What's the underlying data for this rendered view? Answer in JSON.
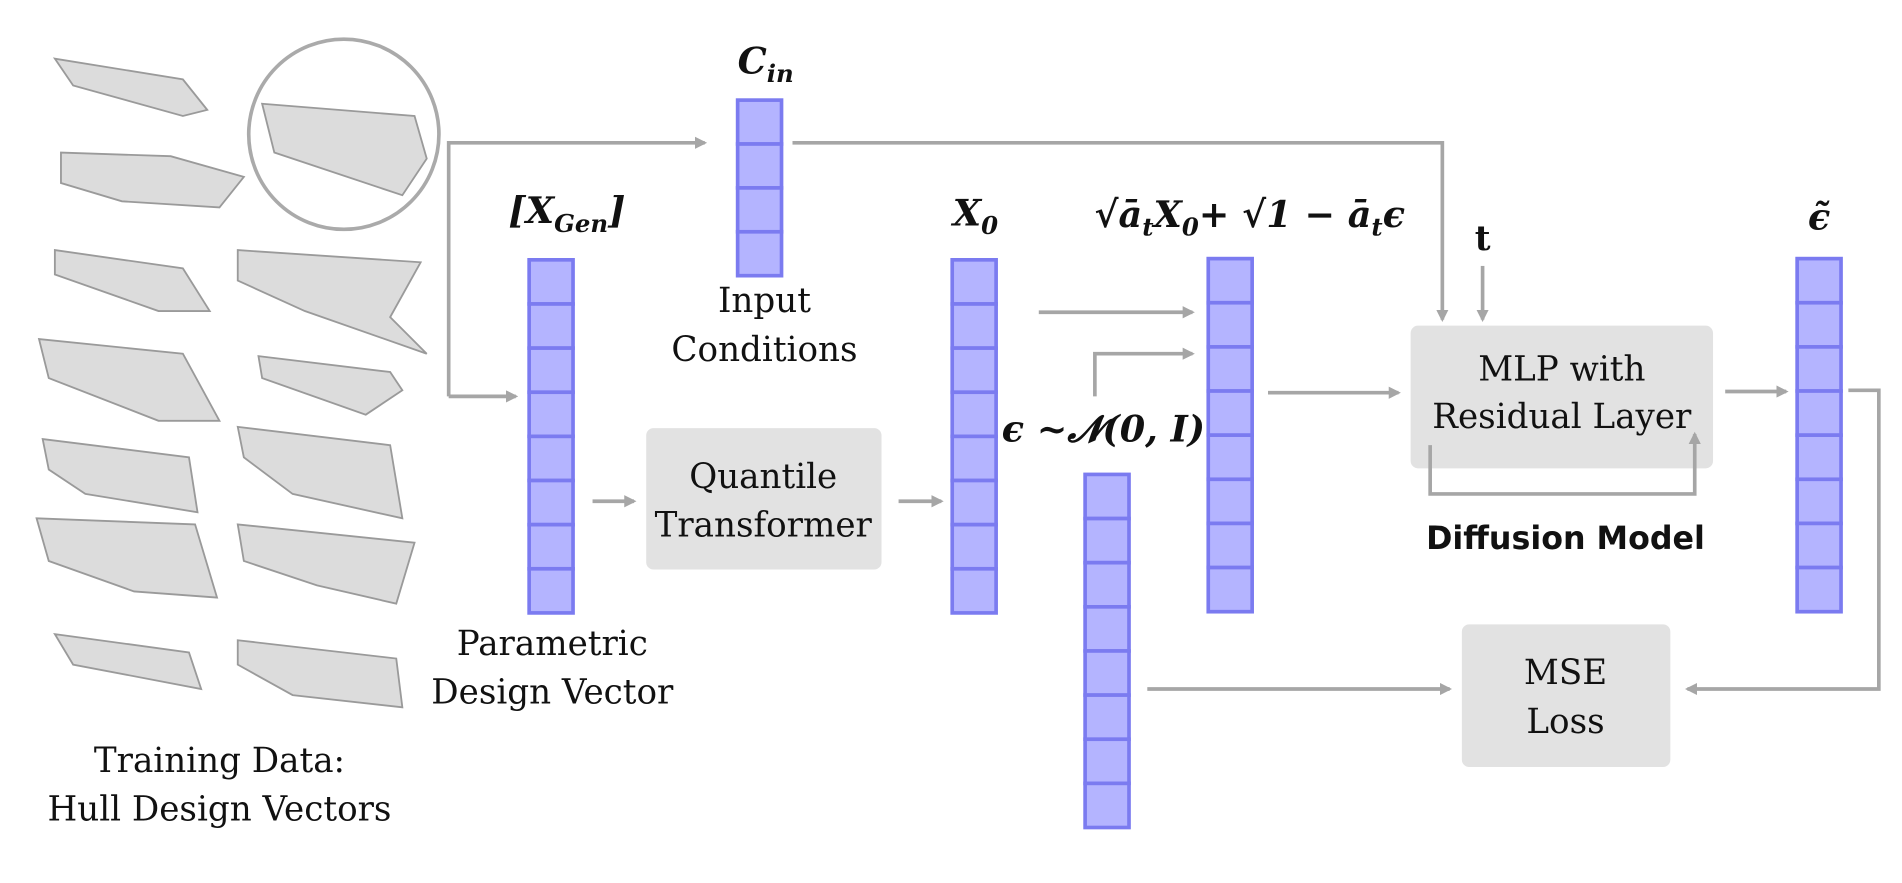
{
  "training_label": [
    "Training Data:",
    "Hull Design Vectors"
  ],
  "x_gen": {
    "base": "[X",
    "sub": "Gen",
    "tail": "]"
  },
  "parametric_label": [
    "Parametric",
    "Design Vector"
  ],
  "c_in": {
    "base": "C",
    "sub": "in"
  },
  "input_label": [
    "Input",
    "Conditions"
  ],
  "quantile_box": [
    "Quantile",
    "Transformer"
  ],
  "x0": {
    "base": "X",
    "sub": "0"
  },
  "noise_formula": "ϵ ~𝓝(0, 𝑰)",
  "forward_formula": [
    "√ā",
    "t",
    "X",
    "0",
    "+ √1 − ā",
    "t",
    "ϵ"
  ],
  "t_label": "t",
  "mlp_box": [
    "MLP with",
    "Residual Layer"
  ],
  "diffusion_label": "Diffusion Model",
  "eps_pred": "ϵ̃",
  "mse_box": [
    "MSE",
    "Loss"
  ]
}
